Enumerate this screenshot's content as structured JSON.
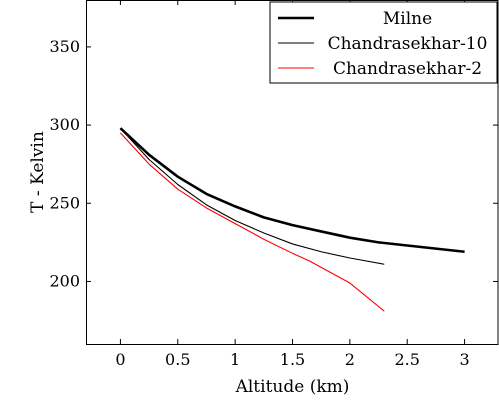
{
  "chart_data": {
    "type": "line",
    "title": "",
    "xlabel": "Altitude (km)",
    "ylabel": "T - Kelvin",
    "xlim": [
      -0.3,
      3.3
    ],
    "ylim": [
      160,
      380
    ],
    "xticks": [
      0,
      0.5,
      1,
      1.5,
      2,
      2.5,
      3
    ],
    "xtick_labels": [
      "0",
      "0.5",
      "1",
      "1.5",
      "2",
      "2.5",
      "3"
    ],
    "yticks": [
      200,
      250,
      300,
      350
    ],
    "ytick_labels": [
      "200",
      "250",
      "300",
      "350"
    ],
    "grid": false,
    "legend_position": "top-right",
    "series": [
      {
        "name": "Milne",
        "color": "#000000",
        "style": "thick",
        "x": [
          0,
          0.25,
          0.5,
          0.75,
          1.0,
          1.25,
          1.5,
          1.75,
          2.0,
          2.25,
          2.5,
          2.75,
          3.0
        ],
        "y": [
          298,
          281,
          267,
          256,
          248,
          241,
          236,
          232,
          228,
          225,
          223,
          221,
          219
        ]
      },
      {
        "name": "Chandrasekhar-10",
        "color": "#000000",
        "style": "thin",
        "x": [
          0,
          0.25,
          0.5,
          0.75,
          1.0,
          1.25,
          1.5,
          1.75,
          2.0,
          2.3
        ],
        "y": [
          298,
          278,
          262,
          249,
          239,
          231,
          224,
          219,
          215,
          211
        ]
      },
      {
        "name": "Chandrasekhar-2",
        "color": "#ff0000",
        "style": "thin",
        "x": [
          0,
          0.25,
          0.5,
          0.75,
          1.0,
          1.25,
          1.5,
          1.65,
          2.0,
          2.3
        ],
        "y": [
          295,
          275,
          259,
          247,
          237,
          227,
          218,
          213,
          199,
          181
        ]
      }
    ]
  }
}
